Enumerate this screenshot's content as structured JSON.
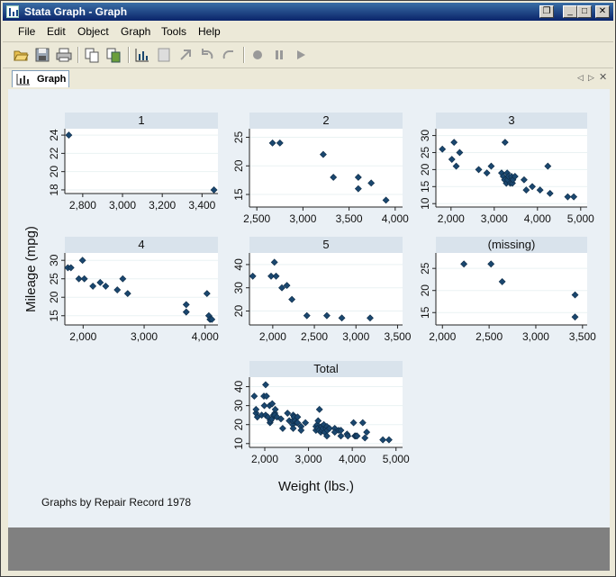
{
  "window": {
    "title": "Stata Graph - Graph",
    "controls": {
      "minimize": "_",
      "restore": "❐",
      "close": "✕"
    }
  },
  "menu": {
    "items": [
      "File",
      "Edit",
      "Object",
      "Graph",
      "Tools",
      "Help"
    ]
  },
  "toolbar": {
    "icons": [
      "open-icon",
      "save-icon",
      "print-icon",
      "copy-icon",
      "rename-icon",
      "graph-editor-icon",
      "object-browser-icon",
      "pointer-tool-icon",
      "undo-icon",
      "redo-icon",
      "record-icon",
      "pause-icon",
      "play-icon"
    ]
  },
  "tab": {
    "label": "Graph"
  },
  "colors": {
    "marker": "#1a476f",
    "panel_bg": "#ffffff",
    "strip": "#d9e3ec",
    "plot_region": "#eaf0f5",
    "grid": "#eaf2f3"
  },
  "graph": {
    "ylabel": "Mileage (mpg)",
    "xlabel": "Weight (lbs.)",
    "note": "Graphs by Repair Record 1978"
  },
  "chart_data": [
    {
      "type": "scatter",
      "title": "1",
      "xticks": [
        "2,800",
        "3,000",
        "3,200",
        "3,400"
      ],
      "yticks": [
        "18",
        "20",
        "22",
        "24"
      ],
      "xlim": [
        2710,
        3480
      ],
      "ylim": [
        17.6,
        24.7
      ],
      "xtickvals": [
        2800,
        3000,
        3200,
        3400
      ],
      "ytickvals": [
        18,
        20,
        22,
        24
      ],
      "points": [
        [
          2730,
          24
        ],
        [
          3460,
          18
        ]
      ]
    },
    {
      "type": "scatter",
      "title": "2",
      "xticks": [
        "2,500",
        "3,000",
        "3,500",
        "4,000"
      ],
      "yticks": [
        "15",
        "20",
        "25"
      ],
      "xlim": [
        2420,
        4080
      ],
      "ylim": [
        12.8,
        26.5
      ],
      "xtickvals": [
        2500,
        3000,
        3500,
        4000
      ],
      "ytickvals": [
        15,
        20,
        25
      ],
      "points": [
        [
          2670,
          24
        ],
        [
          2750,
          24
        ],
        [
          3220,
          22
        ],
        [
          3330,
          18
        ],
        [
          3600,
          18
        ],
        [
          3600,
          16
        ],
        [
          3740,
          17
        ],
        [
          3900,
          14
        ]
      ]
    },
    {
      "type": "scatter",
      "title": "3",
      "xticks": [
        "2,000",
        "3,000",
        "4,000",
        "5,000"
      ],
      "yticks": [
        "10",
        "15",
        "20",
        "25",
        "30"
      ],
      "xlim": [
        1650,
        5150
      ],
      "ylim": [
        9,
        32
      ],
      "xtickvals": [
        2000,
        3000,
        4000,
        5000
      ],
      "ytickvals": [
        10,
        15,
        20,
        25,
        30
      ],
      "points": [
        [
          1800,
          26
        ],
        [
          2020,
          23
        ],
        [
          2070,
          28
        ],
        [
          2120,
          21
        ],
        [
          2200,
          25
        ],
        [
          2640,
          20
        ],
        [
          2830,
          19
        ],
        [
          2930,
          21
        ],
        [
          3170,
          19
        ],
        [
          3210,
          18
        ],
        [
          3240,
          17
        ],
        [
          3250,
          28
        ],
        [
          3280,
          16
        ],
        [
          3300,
          19
        ],
        [
          3310,
          17
        ],
        [
          3330,
          18
        ],
        [
          3370,
          16
        ],
        [
          3400,
          18
        ],
        [
          3420,
          16
        ],
        [
          3430,
          17
        ],
        [
          3480,
          18
        ],
        [
          3690,
          17
        ],
        [
          3740,
          14
        ],
        [
          3880,
          15
        ],
        [
          4060,
          14
        ],
        [
          4240,
          21
        ],
        [
          4290,
          13
        ],
        [
          4700,
          12
        ],
        [
          4840,
          12
        ]
      ]
    },
    {
      "type": "scatter",
      "title": "4",
      "xticks": [
        "2,000",
        "3,000",
        "4,000"
      ],
      "yticks": [
        "15",
        "20",
        "25",
        "30"
      ],
      "xlim": [
        1700,
        4210
      ],
      "ylim": [
        12.5,
        32
      ],
      "xtickvals": [
        2000,
        3000,
        4000
      ],
      "ytickvals": [
        15,
        20,
        25,
        30
      ],
      "points": [
        [
          1750,
          28
        ],
        [
          1800,
          28
        ],
        [
          1930,
          25
        ],
        [
          1990,
          30
        ],
        [
          2020,
          25
        ],
        [
          2160,
          23
        ],
        [
          2280,
          24
        ],
        [
          2370,
          23
        ],
        [
          2560,
          22
        ],
        [
          2650,
          25
        ],
        [
          2730,
          21
        ],
        [
          3690,
          18
        ],
        [
          3690,
          16
        ],
        [
          4030,
          21
        ],
        [
          4060,
          15
        ],
        [
          4080,
          14
        ],
        [
          4110,
          14
        ]
      ]
    },
    {
      "type": "scatter",
      "title": "5",
      "xticks": [
        "2,000",
        "2,500",
        "3,000",
        "3,500"
      ],
      "yticks": [
        "20",
        "30",
        "40"
      ],
      "xlim": [
        1720,
        3560
      ],
      "ylim": [
        14,
        45
      ],
      "xtickvals": [
        2000,
        2500,
        3000,
        3500
      ],
      "ytickvals": [
        20,
        30,
        40
      ],
      "points": [
        [
          1760,
          35
        ],
        [
          1980,
          35
        ],
        [
          2020,
          41
        ],
        [
          2040,
          35
        ],
        [
          2110,
          30
        ],
        [
          2170,
          31
        ],
        [
          2230,
          25
        ],
        [
          2410,
          18
        ],
        [
          2650,
          18
        ],
        [
          2830,
          17
        ],
        [
          3170,
          17
        ]
      ]
    },
    {
      "type": "scatter",
      "title": "(missing)",
      "xticks": [
        "2,000",
        "2,500",
        "3,000",
        "3,500"
      ],
      "yticks": [
        "15",
        "20",
        "25"
      ],
      "xlim": [
        1930,
        3550
      ],
      "ylim": [
        12.2,
        28.5
      ],
      "xtickvals": [
        2000,
        2500,
        3000,
        3500
      ],
      "ytickvals": [
        15,
        20,
        25
      ],
      "points": [
        [
          2230,
          26
        ],
        [
          2520,
          26
        ],
        [
          2640,
          22
        ],
        [
          3420,
          19
        ],
        [
          3420,
          14
        ]
      ]
    },
    {
      "type": "scatter",
      "title": "Total",
      "xticks": [
        "2,000",
        "3,000",
        "4,000",
        "5,000"
      ],
      "yticks": [
        "10",
        "20",
        "30",
        "40"
      ],
      "xlim": [
        1650,
        5150
      ],
      "ylim": [
        8,
        45
      ],
      "xtickvals": [
        2000,
        3000,
        4000,
        5000
      ],
      "ytickvals": [
        10,
        20,
        30,
        40
      ],
      "points": [
        [
          1760,
          35
        ],
        [
          1800,
          26
        ],
        [
          1800,
          28
        ],
        [
          1830,
          24
        ],
        [
          1930,
          25
        ],
        [
          1980,
          35
        ],
        [
          1990,
          30
        ],
        [
          2020,
          41
        ],
        [
          2020,
          25
        ],
        [
          2040,
          35
        ],
        [
          2070,
          24
        ],
        [
          2110,
          30
        ],
        [
          2120,
          21
        ],
        [
          2130,
          22
        ],
        [
          2160,
          23
        ],
        [
          2170,
          31
        ],
        [
          2200,
          25
        ],
        [
          2230,
          26
        ],
        [
          2230,
          25
        ],
        [
          2240,
          28
        ],
        [
          2280,
          24
        ],
        [
          2370,
          23
        ],
        [
          2410,
          18
        ],
        [
          2520,
          26
        ],
        [
          2560,
          22
        ],
        [
          2640,
          20
        ],
        [
          2640,
          22
        ],
        [
          2650,
          25
        ],
        [
          2650,
          18
        ],
        [
          2670,
          24
        ],
        [
          2690,
          22
        ],
        [
          2730,
          21
        ],
        [
          2750,
          24
        ],
        [
          2750,
          21
        ],
        [
          2830,
          19
        ],
        [
          2830,
          17
        ],
        [
          2930,
          21
        ],
        [
          3170,
          17
        ],
        [
          3170,
          19
        ],
        [
          3200,
          20
        ],
        [
          3210,
          18
        ],
        [
          3220,
          22
        ],
        [
          3240,
          17
        ],
        [
          3250,
          28
        ],
        [
          3280,
          16
        ],
        [
          3300,
          19
        ],
        [
          3310,
          17
        ],
        [
          3330,
          18
        ],
        [
          3350,
          20
        ],
        [
          3370,
          16
        ],
        [
          3400,
          18
        ],
        [
          3420,
          19
        ],
        [
          3420,
          14
        ],
        [
          3430,
          17
        ],
        [
          3480,
          18
        ],
        [
          3600,
          18
        ],
        [
          3600,
          16
        ],
        [
          3690,
          17
        ],
        [
          3740,
          14
        ],
        [
          3740,
          17
        ],
        [
          3880,
          15
        ],
        [
          3900,
          14
        ],
        [
          4030,
          21
        ],
        [
          4060,
          14
        ],
        [
          4080,
          14
        ],
        [
          4110,
          14
        ],
        [
          4240,
          21
        ],
        [
          4290,
          13
        ],
        [
          4330,
          16
        ],
        [
          4700,
          12
        ],
        [
          4840,
          12
        ]
      ]
    }
  ]
}
